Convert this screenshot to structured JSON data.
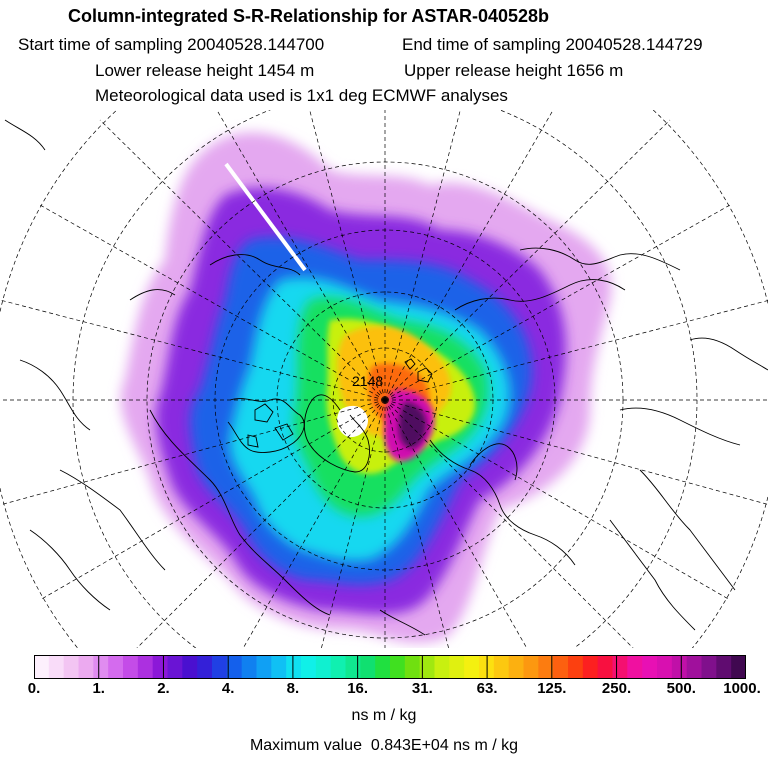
{
  "header": {
    "title": "Column-integrated S-R-Relationship for ASTAR-040528b",
    "start_label": "Start time of sampling 20040528.144700",
    "end_label": "End time of sampling 20040528.144729",
    "lower_label": "Lower release height 1454 m",
    "upper_label": "Upper release height 1656 m",
    "met_label": "Meteorological data used is 1x1 deg ECMWF analyses"
  },
  "map": {
    "projection": "north-polar-stereographic",
    "annotation": "2148"
  },
  "legend": {
    "ticks": [
      "0.",
      "1.",
      "2.",
      "4.",
      "8.",
      "16.",
      "31.",
      "63.",
      "125.",
      "250.",
      "500.",
      "1000."
    ],
    "colors": [
      "#fdf0fd",
      "#f9dcf9",
      "#f3c5f3",
      "#ecaaf0",
      "#e08cf0",
      "#d46bee",
      "#c44ce8",
      "#ac30e0",
      "#8c18d8",
      "#6a14d4",
      "#4a10d0",
      "#3420d8",
      "#2040e4",
      "#1460ec",
      "#1080f0",
      "#10a0f4",
      "#10c0f4",
      "#10e0f0",
      "#10f0e8",
      "#10f0d0",
      "#10f0b0",
      "#10e890",
      "#10e070",
      "#20e040",
      "#40e020",
      "#70e010",
      "#a0e810",
      "#c8f010",
      "#e0f010",
      "#f4f010",
      "#fce010",
      "#fcc810",
      "#fcb010",
      "#fc9810",
      "#fc7c10",
      "#fc6010",
      "#fc4010",
      "#fc2020",
      "#f81040",
      "#f41070",
      "#f010a0",
      "#e810b4",
      "#d810b0",
      "#c010a8",
      "#a0109c",
      "#80108c",
      "#600c70",
      "#400850"
    ],
    "units": "ns m / kg"
  },
  "max_value": {
    "label": "Maximum value",
    "value": "0.843E+04 ns m / kg"
  }
}
